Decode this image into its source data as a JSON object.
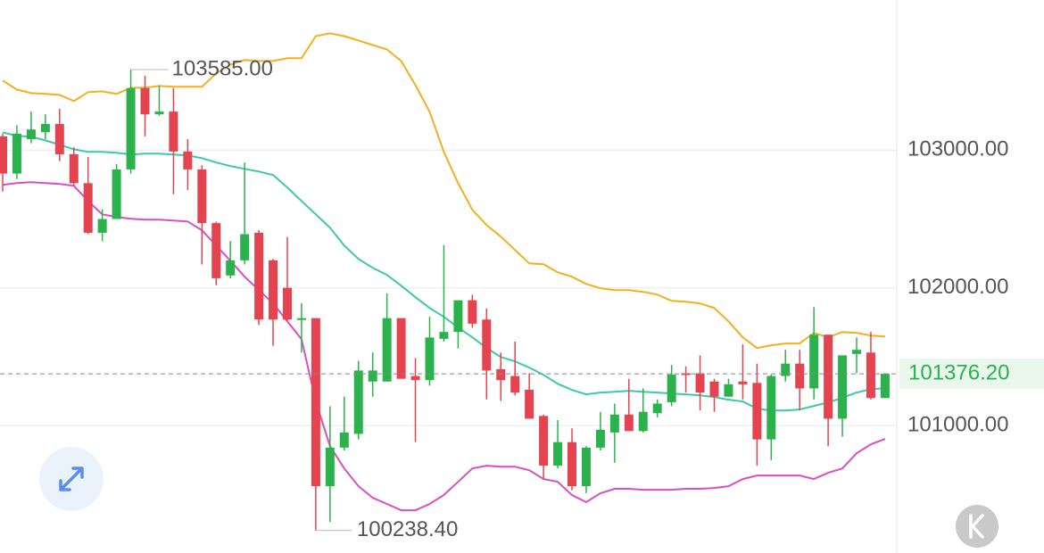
{
  "chart_data": {
    "type": "candlestick",
    "up_color": "#2bb24c",
    "down_color": "#e5434f",
    "open": [
      103100,
      102830,
      103080,
      103130,
      103190,
      102970,
      102760,
      102400,
      102500,
      102860,
      103450,
      103260,
      103280,
      102990,
      102860,
      102470,
      102090,
      102200,
      102400,
      102200,
      102000,
      101780,
      101780,
      100560,
      100840,
      100940,
      101320,
      101320,
      101780,
      101360,
      101330,
      101630,
      101680,
      101910,
      101770,
      101410,
      101360,
      101260,
      101070,
      100710,
      100880,
      100560,
      100840,
      100950,
      101080,
      100960,
      101090,
      101170,
      101380,
      101380,
      101320,
      101210,
      101320,
      101310,
      100900,
      101360,
      101450,
      101270,
      101660,
      101050,
      101520,
      101530,
      101200
    ],
    "high": [
      103120,
      103180,
      103280,
      103260,
      103300,
      103020,
      102950,
      102570,
      102900,
      103585,
      103540,
      103470,
      103450,
      103080,
      102890,
      102480,
      102340,
      102910,
      102420,
      102210,
      102370,
      101890,
      101780,
      101140,
      101210,
      101470,
      101530,
      101960,
      101780,
      101490,
      101790,
      102310,
      101910,
      101950,
      101850,
      101530,
      101610,
      101380,
      101080,
      101040,
      100980,
      100850,
      101100,
      101160,
      101340,
      101270,
      101190,
      101440,
      101430,
      101510,
      101340,
      101340,
      101590,
      101450,
      101370,
      101550,
      101550,
      101860,
      101660,
      101510,
      101640,
      101680,
      101380
    ],
    "low": [
      102700,
      102790,
      103050,
      103080,
      102920,
      102740,
      102390,
      102340,
      102500,
      102830,
      103100,
      103250,
      102680,
      102710,
      102170,
      102020,
      102070,
      102170,
      101730,
      101580,
      101760,
      101530,
      100238.4,
      100300,
      100820,
      100900,
      101210,
      101320,
      101340,
      100880,
      101290,
      101610,
      101560,
      101710,
      101190,
      101180,
      101220,
      101050,
      100610,
      100690,
      100530,
      100510,
      100820,
      100730,
      100960,
      100950,
      101060,
      101140,
      101240,
      101110,
      101100,
      101210,
      101190,
      100710,
      100750,
      101320,
      101110,
      101190,
      100850,
      100920,
      101380,
      101190,
      101200
    ],
    "close": [
      102830,
      103120,
      103150,
      103190,
      102970,
      102760,
      102400,
      102500,
      102860,
      103450,
      103260,
      103280,
      102990,
      102860,
      102470,
      102070,
      102200,
      102390,
      101770,
      101770,
      101770,
      101780,
      100560,
      100840,
      100950,
      101400,
      101400,
      101780,
      101340,
      101330,
      101640,
      101680,
      101910,
      101740,
      101400,
      101330,
      101240,
      101050,
      100710,
      100880,
      100560,
      100840,
      100970,
      101080,
      100960,
      101100,
      101160,
      101370,
      101370,
      101240,
      101210,
      101300,
      101300,
      100900,
      101360,
      101450,
      101270,
      101660,
      101050,
      101510,
      101550,
      101200,
      101376.2
    ],
    "lines": [
      {
        "color": "#f2b01e",
        "values": [
          103505,
          103440,
          103414,
          103408,
          103401,
          103356,
          103421,
          103427,
          103408,
          103453,
          103453,
          103466,
          103460,
          103460,
          103460,
          103557,
          103621,
          103654,
          103647,
          103647,
          103667,
          103667,
          103828,
          103848,
          103828,
          103796,
          103763,
          103731,
          103647,
          103472,
          103278,
          102987,
          102760,
          102566,
          102456,
          102372,
          102275,
          102178,
          102172,
          102113,
          102081,
          102029,
          101997,
          101984,
          101984,
          101971,
          101951,
          101906,
          101900,
          101887,
          101854,
          101757,
          101641,
          101563,
          101583,
          101596,
          101596,
          101673,
          101641,
          101680,
          101673,
          101654,
          101647
        ]
      },
      {
        "color": "#3cc9a8",
        "values": [
          103129,
          103104,
          103097,
          103071,
          103039,
          103006,
          102987,
          102987,
          102981,
          102968,
          102974,
          102974,
          102968,
          102961,
          102942,
          102910,
          102884,
          102864,
          102845,
          102819,
          102728,
          102631,
          102534,
          102437,
          102307,
          102210,
          102145,
          102094,
          102016,
          101932,
          101854,
          101790,
          101712,
          101641,
          101563,
          101498,
          101466,
          101421,
          101369,
          101304,
          101259,
          101227,
          101240,
          101246,
          101253,
          101246,
          101240,
          101233,
          101227,
          101220,
          101207,
          101188,
          101175,
          101123,
          101110,
          101110,
          101117,
          101143,
          101168,
          101201,
          101240,
          101265,
          101272
        ]
      },
      {
        "color": "#d94fc0",
        "values": [
          102748,
          102761,
          102767,
          102761,
          102754,
          102741,
          102631,
          102534,
          102515,
          102502,
          102495,
          102495,
          102489,
          102482,
          102418,
          102307,
          102197,
          102081,
          101984,
          101887,
          101757,
          101628,
          101175,
          100851,
          100689,
          100560,
          100476,
          100431,
          100385,
          100385,
          100431,
          100496,
          100592,
          100689,
          100709,
          100702,
          100702,
          100676,
          100612,
          100592,
          100496,
          100444,
          100509,
          100541,
          100541,
          100534,
          100534,
          100534,
          100541,
          100541,
          100547,
          100560,
          100612,
          100638,
          100638,
          100638,
          100638,
          100612,
          100657,
          100689,
          100799,
          100864,
          100903
        ]
      }
    ],
    "ylim": [
      100075,
      104090
    ],
    "yticks": [
      {
        "value": 101000,
        "label": "101000.00"
      },
      {
        "value": 102000,
        "label": "102000.00"
      },
      {
        "value": 103000,
        "label": "103000.00"
      }
    ],
    "grid": true,
    "high_label": "103585.00",
    "low_label": "100238.40",
    "last_label": "101376.20"
  }
}
